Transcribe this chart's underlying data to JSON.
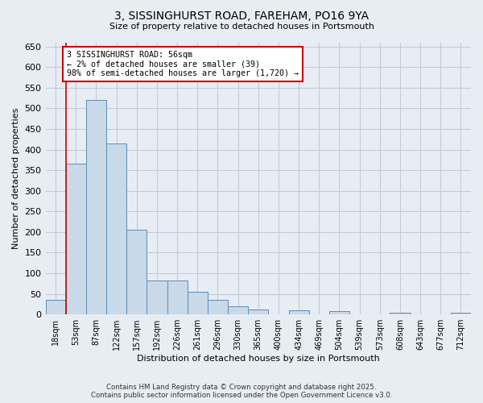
{
  "title_line1": "3, SISSINGHURST ROAD, FAREHAM, PO16 9YA",
  "title_line2": "Size of property relative to detached houses in Portsmouth",
  "xlabel": "Distribution of detached houses by size in Portsmouth",
  "ylabel": "Number of detached properties",
  "categories": [
    "18sqm",
    "53sqm",
    "87sqm",
    "122sqm",
    "157sqm",
    "192sqm",
    "226sqm",
    "261sqm",
    "296sqm",
    "330sqm",
    "365sqm",
    "400sqm",
    "434sqm",
    "469sqm",
    "504sqm",
    "539sqm",
    "573sqm",
    "608sqm",
    "643sqm",
    "677sqm",
    "712sqm"
  ],
  "values": [
    35,
    365,
    520,
    415,
    205,
    82,
    82,
    55,
    35,
    20,
    12,
    0,
    10,
    0,
    8,
    0,
    0,
    5,
    0,
    0,
    5
  ],
  "bar_color": "#c9d9e8",
  "bar_edge_color": "#5b8db8",
  "grid_color": "#c0ccd8",
  "bg_color": "#e8edf4",
  "red_line_x": 0.5,
  "annotation_text": "3 SISSINGHURST ROAD: 56sqm\n← 2% of detached houses are smaller (39)\n98% of semi-detached houses are larger (1,720) →",
  "annotation_box_color": "#ffffff",
  "annotation_border_color": "#cc0000",
  "ylim": [
    0,
    660
  ],
  "yticks": [
    0,
    50,
    100,
    150,
    200,
    250,
    300,
    350,
    400,
    450,
    500,
    550,
    600,
    650
  ],
  "footer_line1": "Contains HM Land Registry data © Crown copyright and database right 2025.",
  "footer_line2": "Contains public sector information licensed under the Open Government Licence v3.0."
}
